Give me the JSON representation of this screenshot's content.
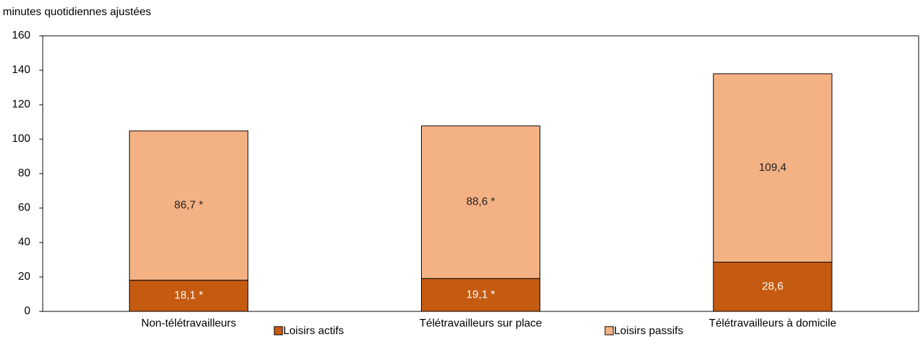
{
  "chart_data": {
    "type": "stacked_bar",
    "y_label": "minutes quotidiennes ajustées",
    "categories": [
      "Non-télétravailleurs",
      "Télétravailleurs sur place",
      "Télétravailleurs à domicile"
    ],
    "series": [
      {
        "name": "Loisirs actifs",
        "color": "#c55a11",
        "values": [
          18.1,
          19.1,
          28.6
        ],
        "value_labels": [
          "18,1 *",
          "19,1 *",
          "28,6"
        ]
      },
      {
        "name": "Loisirs passifs",
        "color": "#f4b183",
        "values": [
          86.7,
          88.6,
          109.4
        ],
        "value_labels": [
          "86,7 *",
          "88,6 *",
          "109,4"
        ]
      }
    ],
    "ylim": [
      0,
      160
    ],
    "yticks": [
      0,
      20,
      40,
      60,
      80,
      100,
      120,
      140,
      160
    ],
    "grid": false
  }
}
